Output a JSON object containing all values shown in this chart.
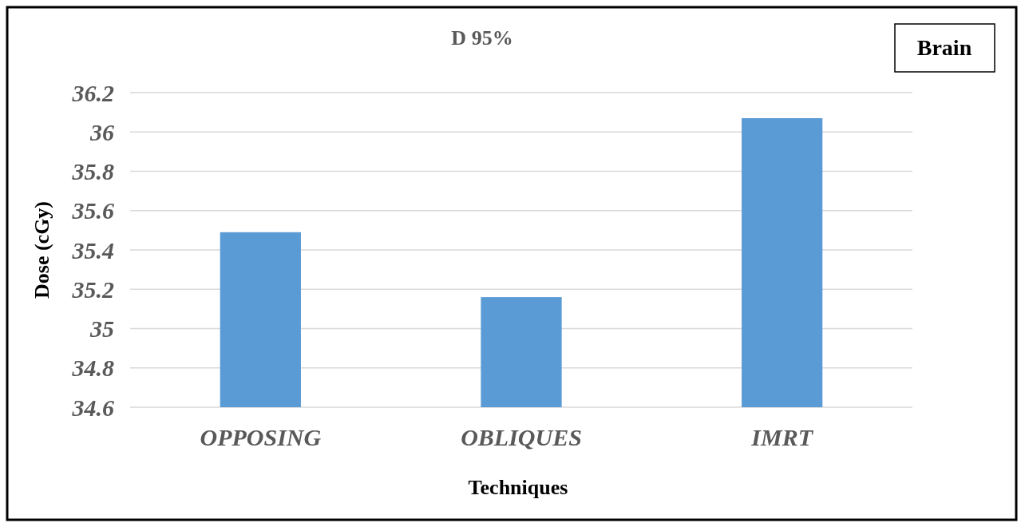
{
  "chart_data": {
    "type": "bar",
    "title": "D 95%",
    "xlabel": "Techniques",
    "ylabel": "Dose (cGy)",
    "categories": [
      "OPPOSING",
      "OBLIQUES",
      "IMRT"
    ],
    "values": [
      35.49,
      35.16,
      36.07
    ],
    "color": "#5b9bd5",
    "ylim": [
      34.6,
      36.2
    ],
    "yticks": [
      34.6,
      34.8,
      35,
      35.2,
      35.4,
      35.6,
      35.8,
      36,
      36.2
    ],
    "grid": "y",
    "annotations": [
      "Brain"
    ]
  }
}
